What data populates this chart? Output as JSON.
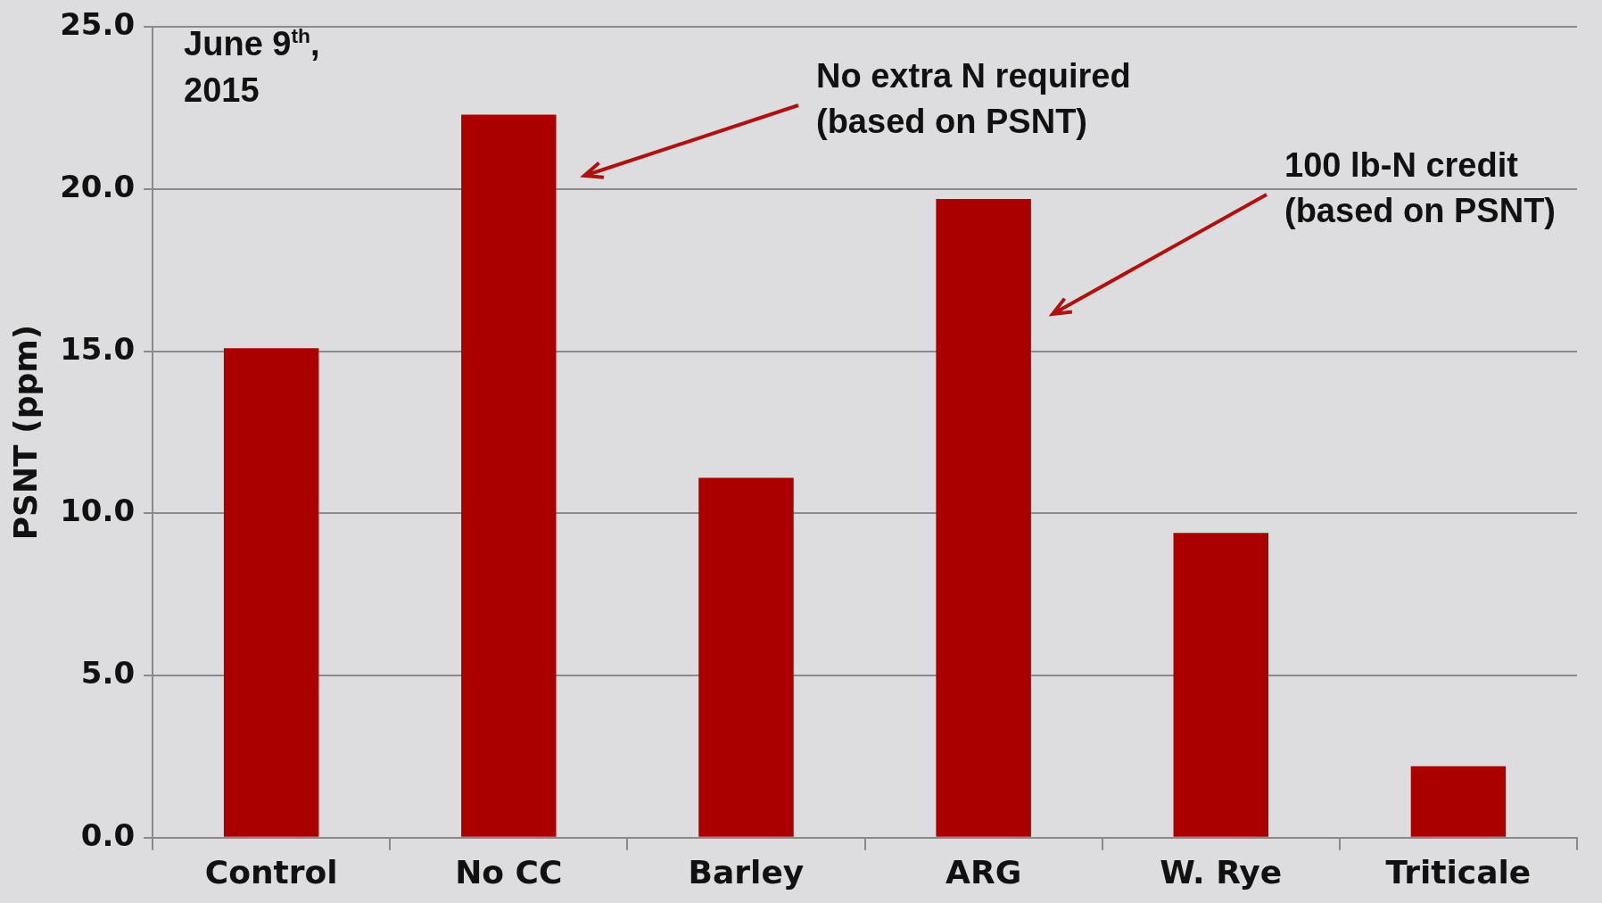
{
  "chart_data": {
    "type": "bar",
    "ylabel": "PSNT (ppm)",
    "categories": [
      "Control",
      "No CC",
      "Barley",
      "ARG",
      "W. Rye",
      "Triticale"
    ],
    "values": [
      15.1,
      22.3,
      11.1,
      19.7,
      9.4,
      2.2
    ],
    "color": "#aa0000",
    "ylim": [
      0,
      25
    ],
    "yticks": [
      {
        "value": 0,
        "label": "0.0"
      },
      {
        "value": 5,
        "label": "5.0"
      },
      {
        "value": 10,
        "label": "10.0"
      },
      {
        "value": 15,
        "label": "15.0"
      },
      {
        "value": 20,
        "label": "20.0"
      },
      {
        "value": 25,
        "label": "25.0"
      }
    ],
    "grid": "y",
    "legend": false,
    "annotations": [
      "June 9$^{th}$,\n2015",
      "No extra N required\n(based on PSNT)",
      "100 lb-N credit\n(based on PSNT)"
    ]
  }
}
